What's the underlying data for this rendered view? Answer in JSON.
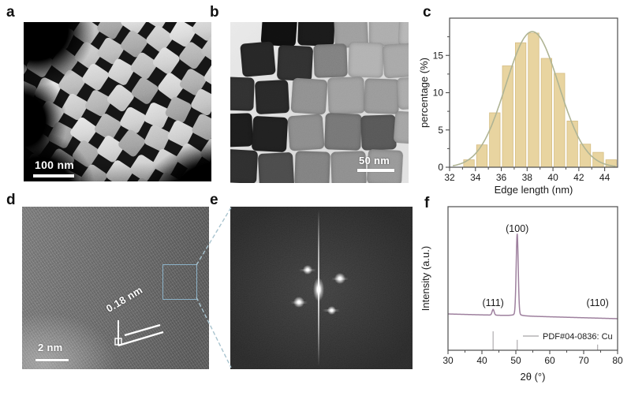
{
  "figure": {
    "panels": {
      "a": {
        "label": "a",
        "scale_bar": "100 nm"
      },
      "b": {
        "label": "b",
        "scale_bar": "50 nm"
      },
      "c": {
        "label": "c"
      },
      "d": {
        "label": "d",
        "scale_bar": "2 nm",
        "annotation": "0.18 nm",
        "roi_box_color": "#8cb2c8"
      },
      "e": {
        "label": "e"
      },
      "f": {
        "label": "f"
      }
    }
  },
  "chart_data": [
    {
      "type": "bar",
      "panel": "c",
      "title": "",
      "xlabel": "Edge length (nm)",
      "ylabel": "percentage (%)",
      "xlim": [
        32,
        45
      ],
      "ylim": [
        0,
        20
      ],
      "x_ticks": [
        32,
        34,
        36,
        38,
        40,
        42,
        44
      ],
      "x_minor_ticks": [
        33,
        35,
        37,
        39,
        41,
        43
      ],
      "y_ticks": [
        0,
        5,
        10,
        15
      ],
      "y_minor_ticks": [
        2.5,
        7.5,
        12.5,
        17.5
      ],
      "categories": [
        33.5,
        34.5,
        35.5,
        36.5,
        37.5,
        38.5,
        39.5,
        40.5,
        41.5,
        42.5,
        43.5,
        44.5
      ],
      "values": [
        1.0,
        3.0,
        7.3,
        13.6,
        16.7,
        18.0,
        14.6,
        12.6,
        6.2,
        3.1,
        2.0,
        1.0
      ],
      "bar_color": "#e8d4a0",
      "bar_edge_color": "#d5bd83",
      "frame_color": "#4d4d4d",
      "fit_curve": {
        "type": "gaussian",
        "mean": 38.4,
        "sigma": 2.05,
        "amplitude": 18.2,
        "color": "#afb494"
      }
    },
    {
      "type": "line",
      "panel": "f",
      "title": "",
      "xlabel": "2θ (°)",
      "ylabel": "Intensity (a.u.)",
      "xlim": [
        30,
        80
      ],
      "x_ticks": [
        30,
        40,
        50,
        60,
        70,
        80
      ],
      "x_minor_ticks": [
        35,
        45,
        55,
        65,
        75
      ],
      "line_color": "#9e809e",
      "frame_color": "#4d4d4d",
      "peaks": [
        {
          "two_theta": 43.3,
          "label": "(111)",
          "rel_intensity": 0.07
        },
        {
          "two_theta": 50.4,
          "label": "(100)",
          "rel_intensity": 1.0
        },
        {
          "two_theta": 74.1,
          "label": "(110)",
          "rel_intensity": 0.0
        }
      ],
      "reference": {
        "label": "PDF#04-0836: Cu",
        "color": "#b5b3b5",
        "lines_two_theta": [
          43.3,
          50.4,
          74.1
        ],
        "lines_rel_height": [
          1.0,
          0.55,
          0.3
        ]
      }
    }
  ]
}
